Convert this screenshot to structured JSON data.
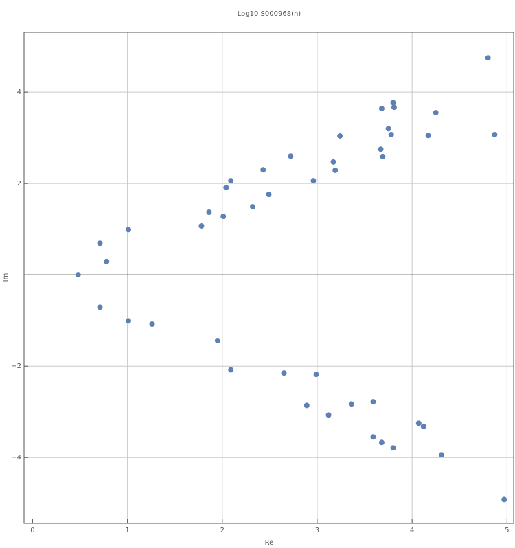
{
  "chart_data": {
    "type": "scatter",
    "title": "Log10 S000968(n)",
    "x_label": "Re",
    "y_label": "Im",
    "xlim": [
      -0.09,
      5.07
    ],
    "ylim": [
      -5.44,
      5.31
    ],
    "xticks": [
      0,
      1,
      2,
      3,
      4,
      5
    ],
    "yticks": [
      {
        "value": -4,
        "label": "−4"
      },
      {
        "value": -2,
        "label": "−2"
      },
      2,
      4
    ],
    "grid": true,
    "zero_line": true,
    "series": [
      {
        "color": "#5e81b5",
        "x": [
          0.48,
          0.71,
          0.78,
          1.01,
          0.71,
          1.01,
          1.26,
          1.78,
          1.86,
          2.01,
          2.04,
          2.09,
          1.95,
          2.09,
          2.32,
          2.43,
          2.49,
          2.72,
          2.65,
          2.89,
          2.96,
          2.99,
          3.12,
          3.17,
          3.19,
          3.24,
          3.36,
          3.59,
          3.59,
          3.67,
          3.69,
          3.68,
          3.68,
          3.75,
          3.78,
          3.8,
          3.81,
          3.8,
          4.07,
          4.12,
          4.17,
          4.25,
          4.31,
          4.8,
          4.87,
          4.97
        ],
        "values": [
          0,
          0.69,
          0.29,
          0.99,
          -0.71,
          -1.01,
          -1.08,
          1.07,
          1.37,
          1.28,
          1.91,
          2.06,
          -1.44,
          -2.08,
          1.49,
          2.3,
          1.76,
          2.6,
          -2.15,
          -2.86,
          2.06,
          -2.18,
          -3.07,
          2.47,
          2.29,
          3.04,
          -2.83,
          -2.78,
          -3.55,
          2.75,
          2.59,
          3.64,
          -3.67,
          3.2,
          3.07,
          3.77,
          3.67,
          -3.79,
          -3.25,
          -3.32,
          3.05,
          3.55,
          -3.94,
          4.75,
          3.07,
          -4.92
        ]
      }
    ]
  }
}
